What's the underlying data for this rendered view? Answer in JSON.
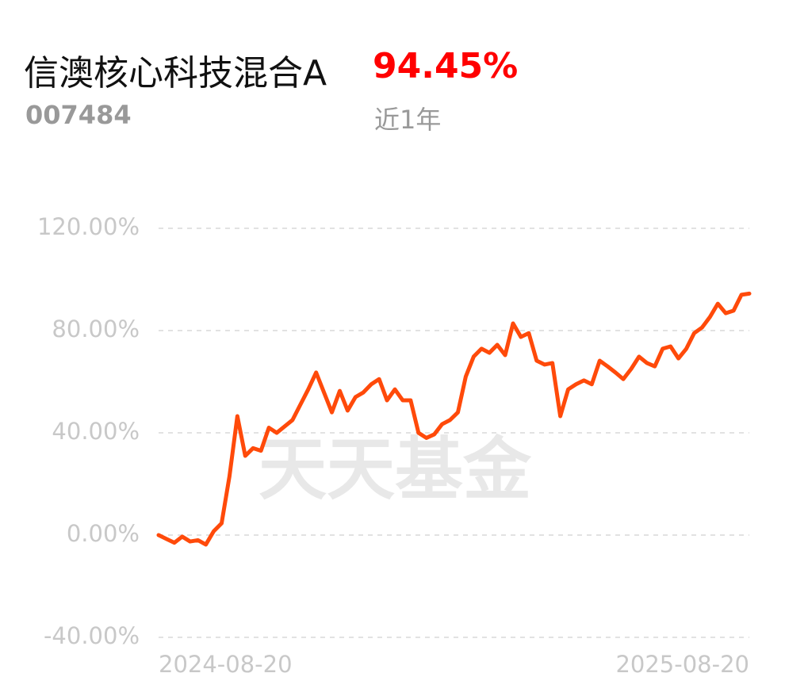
{
  "header": {
    "name": "信澳核心科技混合A",
    "code": "007484",
    "return": "94.45%",
    "period": "近1年",
    "watermark": "天天基金"
  },
  "chart_data": {
    "type": "line",
    "categories": [
      "2024-08-20",
      null,
      null,
      null,
      null,
      null,
      null,
      null,
      null,
      null,
      null,
      null,
      null,
      null,
      null,
      null,
      null,
      null,
      null,
      null,
      null,
      null,
      null,
      null,
      null,
      null,
      null,
      null,
      null,
      null,
      null,
      null,
      null,
      null,
      null,
      null,
      null,
      null,
      null,
      null,
      null,
      null,
      null,
      null,
      null,
      null,
      null,
      null,
      null,
      null,
      null,
      null,
      null,
      null,
      null,
      null,
      null,
      null,
      null,
      null,
      null,
      null,
      null,
      null,
      null,
      null,
      null,
      null,
      null,
      null,
      null,
      null,
      null,
      null,
      null,
      "2025-08-20"
    ],
    "series": [
      {
        "color": "#ff4a0a",
        "values": [
          0,
          -1.5,
          -3,
          -0.6,
          -2.5,
          -2,
          -3.7,
          1.5,
          4.6,
          23,
          46.5,
          31,
          34,
          33,
          42,
          40,
          42.5,
          45,
          51,
          57,
          63.6,
          55.8,
          48,
          56.4,
          48.7,
          54,
          55.8,
          59,
          61,
          52.7,
          57,
          52.7,
          52.7,
          40,
          38,
          39.4,
          43.4,
          45,
          48,
          62,
          69.8,
          72.9,
          71.3,
          74.4,
          70.4,
          82.8,
          77.5,
          79,
          68.2,
          66.7,
          67.3,
          46.5,
          57,
          59,
          60.5,
          59,
          68.2,
          66,
          63.6,
          61,
          65,
          69.8,
          67.3,
          66,
          72.9,
          73.8,
          69.1,
          72.9,
          79,
          81.2,
          85.3,
          90.5,
          86.8,
          87.8,
          94,
          94.45
        ]
      }
    ],
    "ylim": [
      -40,
      120
    ],
    "yticks": [
      {
        "value": -40,
        "label": "-40.00%"
      },
      {
        "value": 0,
        "label": "0.00%"
      },
      {
        "value": 40,
        "label": "40.00%"
      },
      {
        "value": 80,
        "label": "80.00%"
      },
      {
        "value": 120,
        "label": "120.00%"
      }
    ],
    "grid": true
  }
}
